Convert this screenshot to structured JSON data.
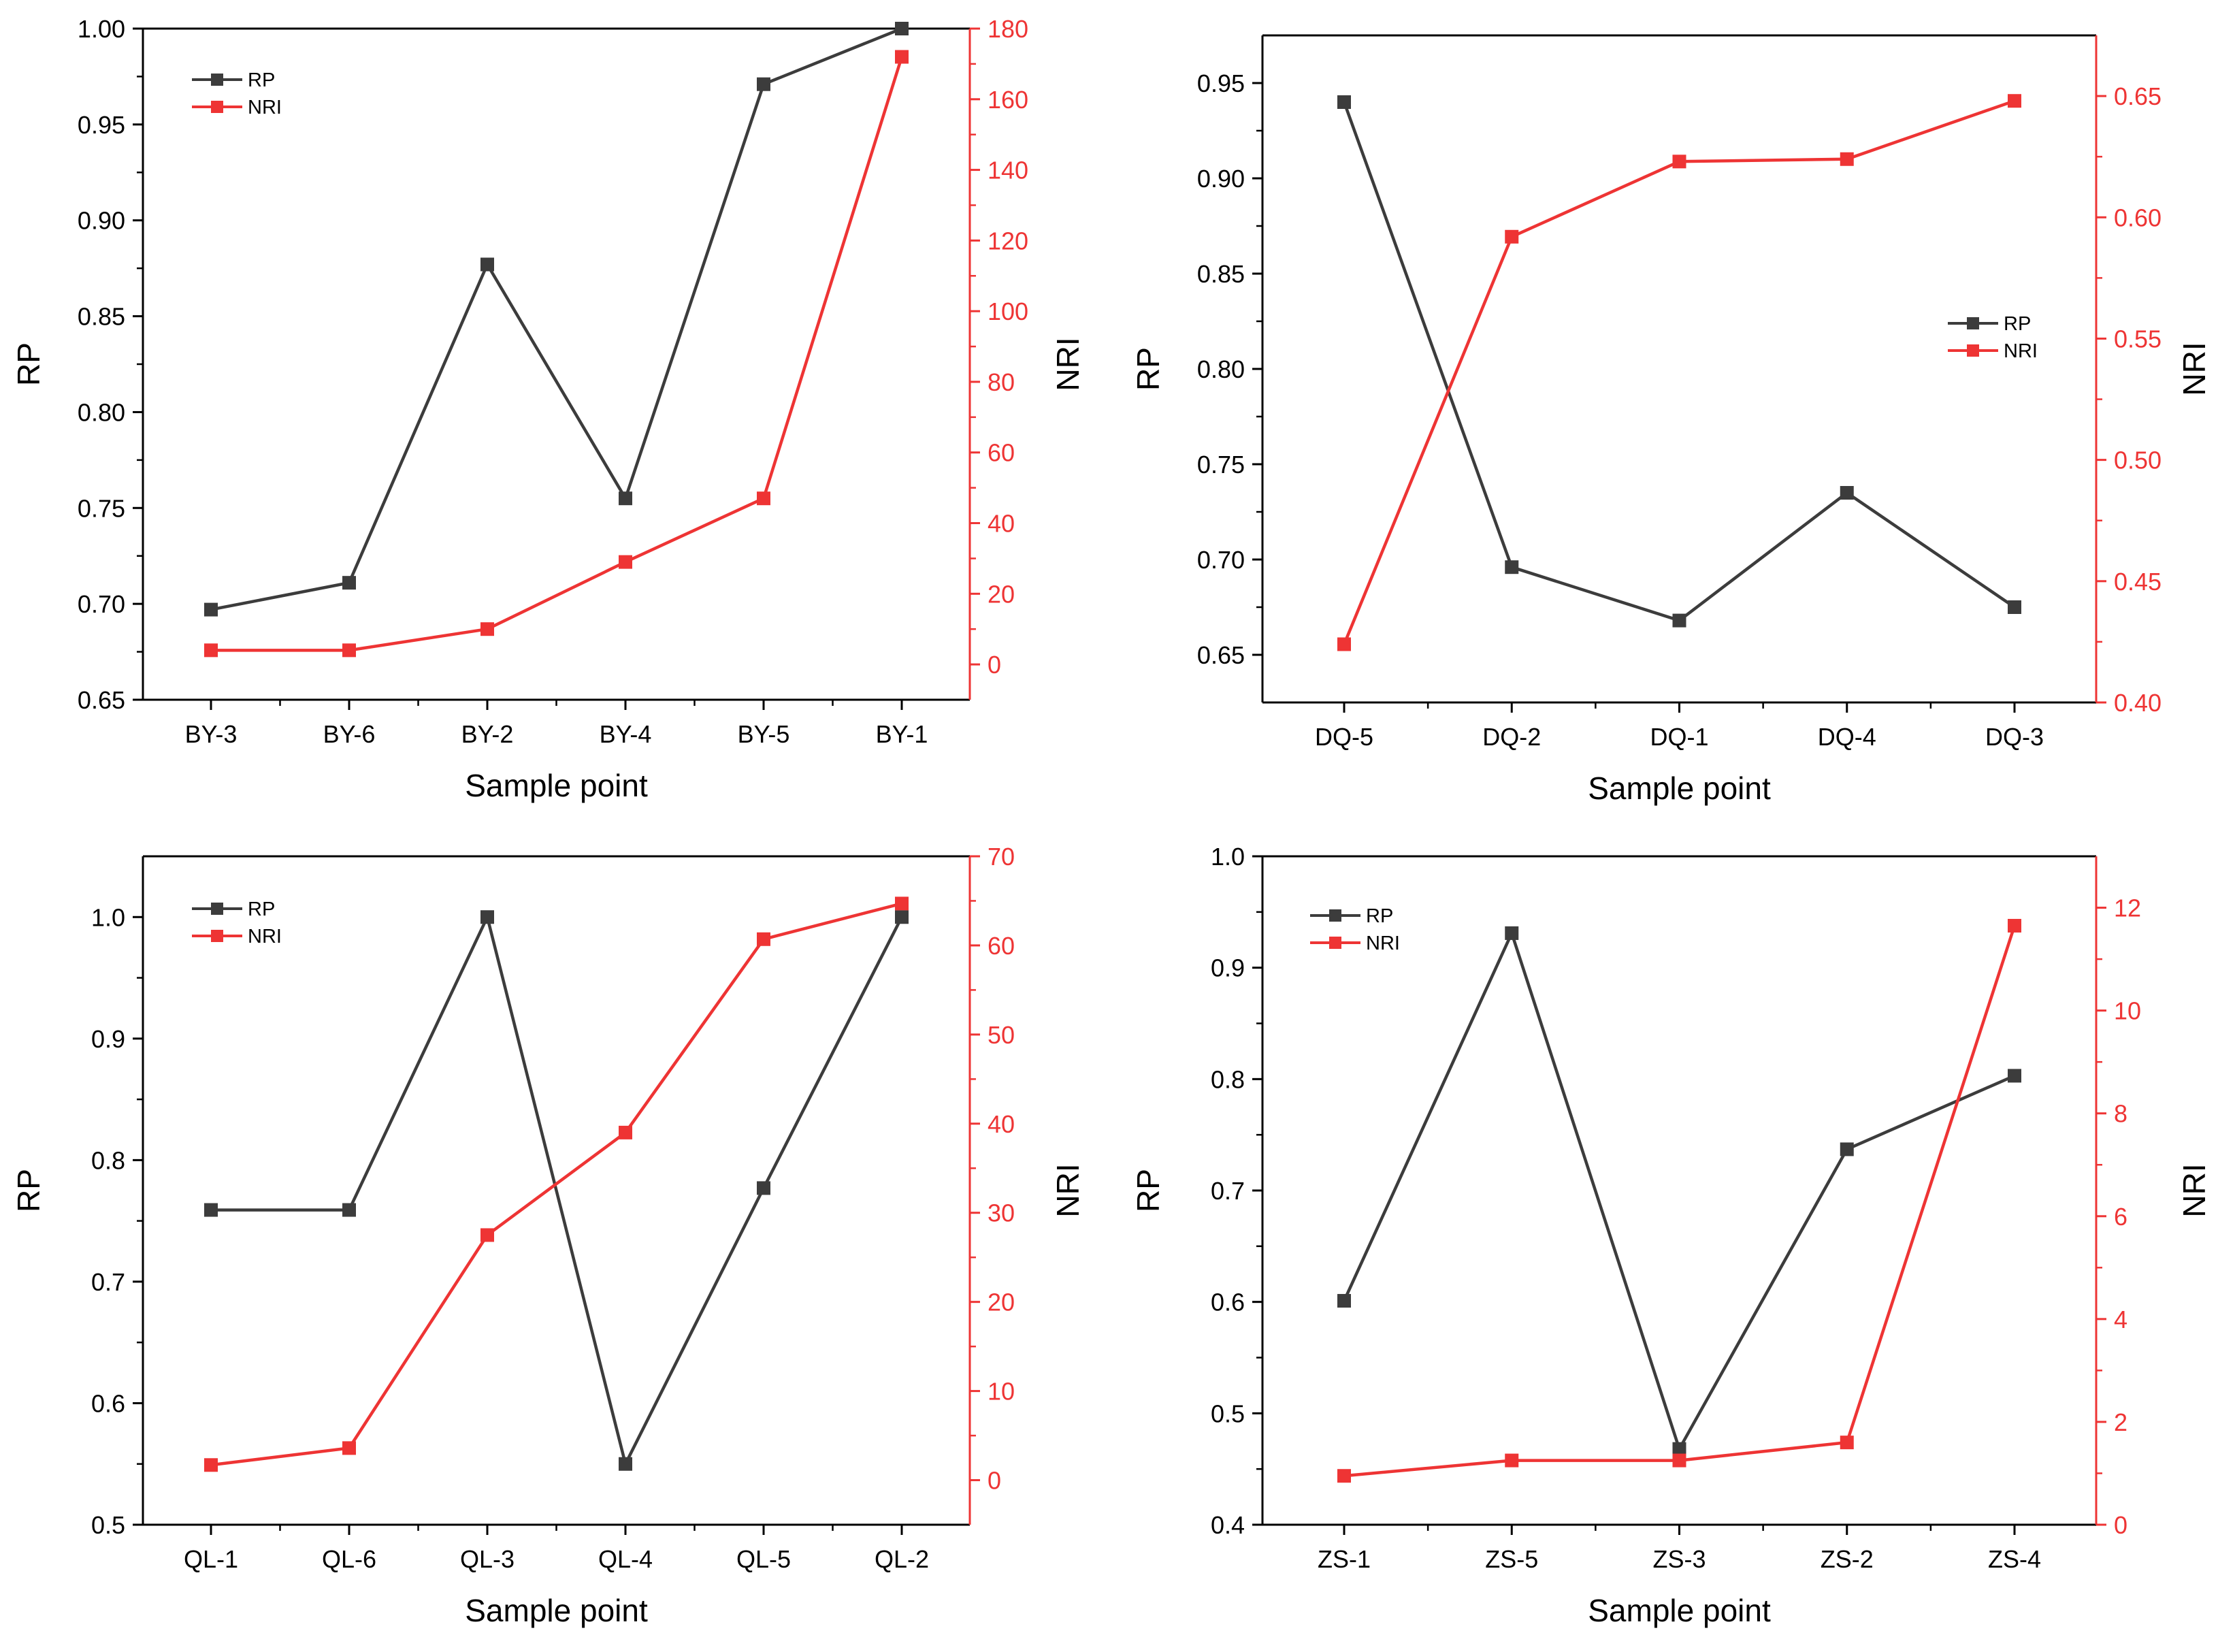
{
  "colors": {
    "rp": "#3c3c3c",
    "nri": "#ee3434",
    "axis": "#000000"
  },
  "chart_data": [
    {
      "type": "line",
      "categories": [
        "BY-3",
        "BY-6",
        "BY-2",
        "BY-4",
        "BY-5",
        "BY-1"
      ],
      "series": [
        {
          "name": "RP",
          "axis": "left",
          "values": [
            0.697,
            0.711,
            0.877,
            0.755,
            0.971,
            1.0
          ]
        },
        {
          "name": "NRI",
          "axis": "right",
          "values": [
            4,
            4,
            10,
            29,
            47,
            172
          ]
        }
      ],
      "xlabel": "Sample point",
      "ylabel": "RP",
      "y2label": "NRI",
      "ylim": [
        0.65,
        1.0
      ],
      "yticks": [
        "0.65",
        "0.70",
        "0.75",
        "0.80",
        "0.85",
        "0.90",
        "0.95",
        "1.00"
      ],
      "y2lim": [
        -10,
        180
      ],
      "y2ticks": [
        "0",
        "20",
        "40",
        "60",
        "80",
        "100",
        "120",
        "140",
        "160",
        "180"
      ],
      "legend": "top-left",
      "grid": false
    },
    {
      "type": "line",
      "categories": [
        "DQ-5",
        "DQ-2",
        "DQ-1",
        "DQ-4",
        "DQ-3"
      ],
      "series": [
        {
          "name": "RP",
          "axis": "left",
          "values": [
            0.94,
            0.696,
            0.668,
            0.735,
            0.675
          ]
        },
        {
          "name": "NRI",
          "axis": "right",
          "values": [
            0.424,
            0.592,
            0.623,
            0.624,
            0.648
          ]
        }
      ],
      "xlabel": "Sample point",
      "ylabel": "RP",
      "y2label": "NRI",
      "ylim": [
        0.625,
        0.975
      ],
      "yticks": [
        "0.65",
        "0.70",
        "0.75",
        "0.80",
        "0.85",
        "0.90",
        "0.95"
      ],
      "y2lim": [
        0.4,
        0.675
      ],
      "y2ticks": [
        "0.40",
        "0.45",
        "0.50",
        "0.55",
        "0.60",
        "0.65"
      ],
      "legend": "right",
      "grid": false
    },
    {
      "type": "line",
      "categories": [
        "QL-1",
        "QL-6",
        "QL-3",
        "QL-4",
        "QL-5",
        "QL-2"
      ],
      "series": [
        {
          "name": "RP",
          "axis": "left",
          "values": [
            0.759,
            0.759,
            1.0,
            0.55,
            0.777,
            1.0
          ]
        },
        {
          "name": "NRI",
          "axis": "right",
          "values": [
            1.7,
            3.6,
            27.5,
            39,
            60.7,
            64.7
          ]
        }
      ],
      "xlabel": "Sample point",
      "ylabel": "RP",
      "y2label": "NRI",
      "ylim": [
        0.5,
        1.05
      ],
      "yticks": [
        "0.5",
        "0.6",
        "0.7",
        "0.8",
        "0.9",
        "1.0"
      ],
      "y2lim": [
        -5,
        70
      ],
      "y2ticks": [
        "0",
        "10",
        "20",
        "30",
        "40",
        "50",
        "60",
        "70"
      ],
      "legend": "top-left",
      "grid": false
    },
    {
      "type": "line",
      "categories": [
        "ZS-1",
        "ZS-5",
        "ZS-3",
        "ZS-2",
        "ZS-4"
      ],
      "series": [
        {
          "name": "RP",
          "axis": "left",
          "values": [
            0.601,
            0.931,
            0.468,
            0.737,
            0.803
          ]
        },
        {
          "name": "NRI",
          "axis": "right",
          "values": [
            0.95,
            1.25,
            1.25,
            1.6,
            11.65
          ]
        }
      ],
      "xlabel": "Sample point",
      "ylabel": "RP",
      "y2label": "NRI",
      "ylim": [
        0.4,
        1.0
      ],
      "yticks": [
        "0.4",
        "0.5",
        "0.6",
        "0.7",
        "0.8",
        "0.9",
        "1.0"
      ],
      "y2lim": [
        0,
        13
      ],
      "y2ticks": [
        "0",
        "2",
        "4",
        "6",
        "8",
        "10",
        "12"
      ],
      "legend": "top-left",
      "grid": false
    }
  ]
}
